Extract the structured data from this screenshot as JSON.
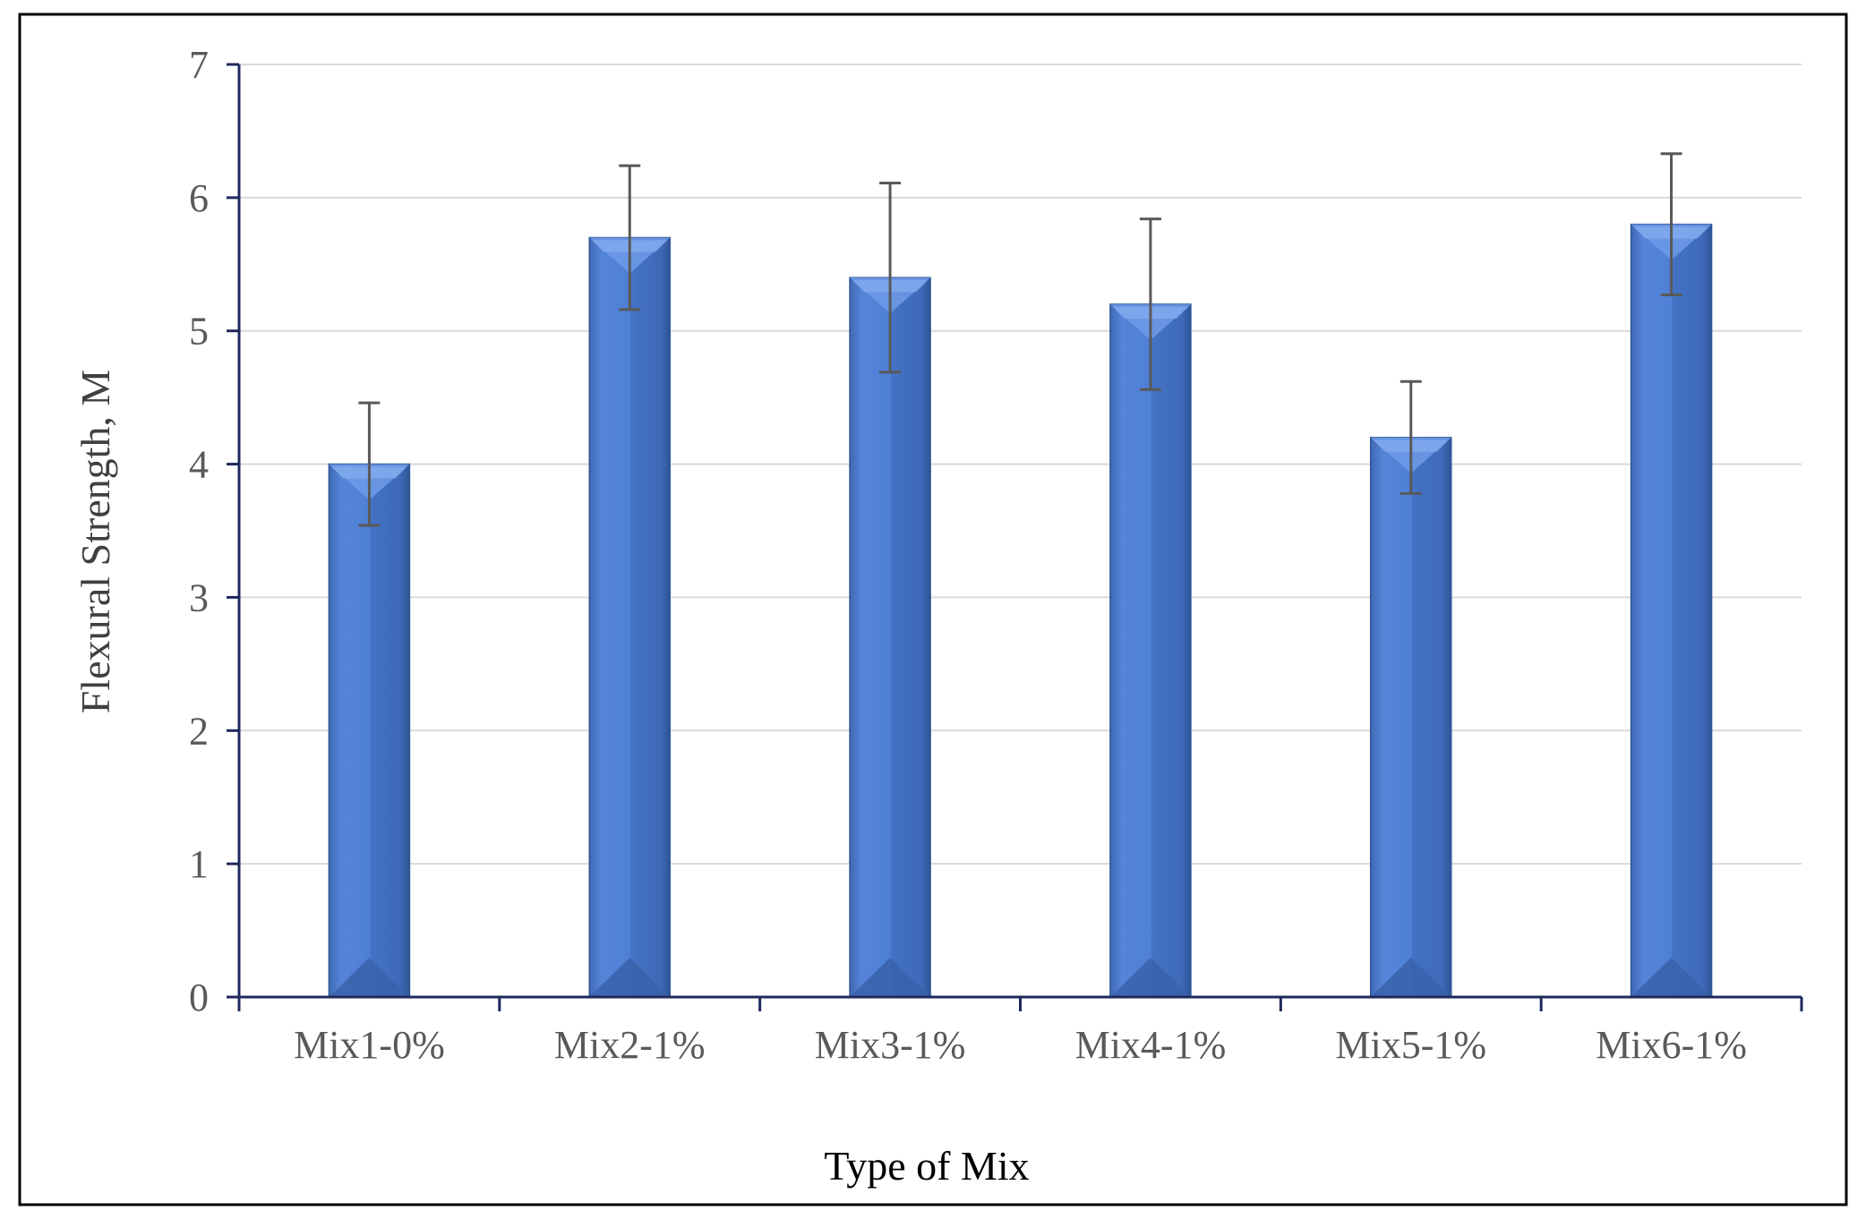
{
  "chart_data": {
    "type": "bar",
    "title": "",
    "xlabel": "Type of Mix",
    "ylabel": "Flexural Strength, M",
    "categories": [
      "Mix1-0%",
      "Mix2-1%",
      "Mix3-1%",
      "Mix4-1%",
      "Mix5-1%",
      "Mix6-1%"
    ],
    "values": [
      4.0,
      5.7,
      5.4,
      5.2,
      4.2,
      5.8
    ],
    "error_upper": [
      4.46,
      6.24,
      6.11,
      5.84,
      4.62,
      6.33
    ],
    "error_lower": [
      3.54,
      5.16,
      4.69,
      4.56,
      3.78,
      5.27
    ],
    "ylim": [
      0,
      7
    ],
    "yticks": [
      "0",
      "1",
      "2",
      "3",
      "4",
      "5",
      "6",
      "7"
    ],
    "grid": true,
    "legend": "none",
    "colors": {
      "bar_main": "#4472C4",
      "bar_light": "#6A96E4",
      "bar_dark": "#2F5597",
      "axis": "#1F2A5C",
      "grid": "#D9D9D9",
      "error_bar": "#595959",
      "frame": "#000000"
    }
  }
}
